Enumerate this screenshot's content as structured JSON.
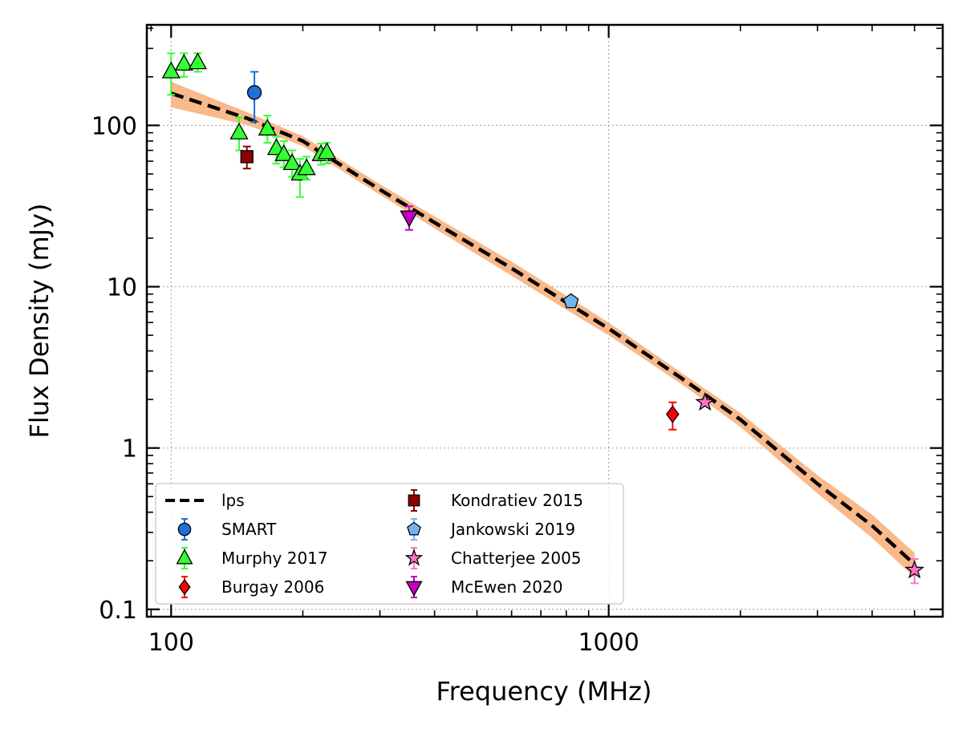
{
  "chart_data": {
    "type": "scatter",
    "title": "",
    "xlabel": "Frequency (MHz)",
    "ylabel": "Flux Density (mJy)",
    "xscale": "log",
    "yscale": "log",
    "xlim": [
      88,
      5800
    ],
    "ylim": [
      0.09,
      420
    ],
    "grid": true,
    "legend_position": "lower-left",
    "x_ticks": [
      {
        "value": 100,
        "label": "100"
      },
      {
        "value": 1000,
        "label": "1000"
      }
    ],
    "y_ticks": [
      {
        "value": 0.1,
        "label": "0.1"
      },
      {
        "value": 1,
        "label": "1"
      },
      {
        "value": 10,
        "label": "10"
      },
      {
        "value": 100,
        "label": "100"
      }
    ],
    "fit": {
      "name": "lps",
      "color": "#000000",
      "band_color": "#f9b98a",
      "points": [
        [
          100,
          158
        ],
        [
          150,
          110
        ],
        [
          200,
          80
        ],
        [
          300,
          40
        ],
        [
          400,
          25
        ],
        [
          600,
          13
        ],
        [
          800,
          8
        ],
        [
          1000,
          5.5
        ],
        [
          1500,
          2.6
        ],
        [
          2000,
          1.5
        ],
        [
          3000,
          0.6
        ],
        [
          4000,
          0.33
        ],
        [
          5000,
          0.19
        ]
      ],
      "band_rel_low": [
        0.82,
        0.91,
        0.93,
        0.93,
        0.92,
        0.9,
        0.9,
        0.91,
        0.92,
        0.9,
        0.87,
        0.84,
        0.83
      ],
      "band_rel_high": [
        1.18,
        1.09,
        1.07,
        1.08,
        1.09,
        1.1,
        1.1,
        1.09,
        1.08,
        1.1,
        1.13,
        1.17,
        1.18
      ]
    },
    "series": [
      {
        "name": "SMART",
        "marker": "circle",
        "color": "#1f6fd6",
        "ecolor": "#1f6fd6",
        "points": [
          {
            "x": 155,
            "y": 160,
            "ylo": 105,
            "yhi": 215
          }
        ]
      },
      {
        "name": "Murphy 2017",
        "marker": "triangle-up",
        "color": "#33ff33",
        "ecolor": "#33ff33",
        "points": [
          {
            "x": 100,
            "y": 215,
            "ylo": 155,
            "yhi": 280
          },
          {
            "x": 107,
            "y": 240,
            "ylo": 200,
            "yhi": 280
          },
          {
            "x": 115,
            "y": 245,
            "ylo": 215,
            "yhi": 280
          },
          {
            "x": 143,
            "y": 90,
            "ylo": 70,
            "yhi": 112
          },
          {
            "x": 166,
            "y": 95,
            "ylo": 78,
            "yhi": 115
          },
          {
            "x": 174,
            "y": 72,
            "ylo": 58,
            "yhi": 85
          },
          {
            "x": 181,
            "y": 66,
            "ylo": 55,
            "yhi": 80
          },
          {
            "x": 189,
            "y": 58,
            "ylo": 48,
            "yhi": 70
          },
          {
            "x": 197,
            "y": 50,
            "ylo": 36,
            "yhi": 62
          },
          {
            "x": 204,
            "y": 54,
            "ylo": 46,
            "yhi": 64
          },
          {
            "x": 220,
            "y": 66,
            "ylo": 57,
            "yhi": 77
          },
          {
            "x": 227,
            "y": 68,
            "ylo": 58,
            "yhi": 78
          }
        ]
      },
      {
        "name": "Burgay 2006",
        "marker": "diamond",
        "color": "#ff0000",
        "ecolor": "#ff0000",
        "points": [
          {
            "x": 1400,
            "y": 1.62,
            "ylo": 1.3,
            "yhi": 1.92
          }
        ]
      },
      {
        "name": "Kondratiev 2015",
        "marker": "square",
        "color": "#8b0000",
        "ecolor": "#8b0000",
        "points": [
          {
            "x": 149,
            "y": 64,
            "ylo": 54,
            "yhi": 74
          }
        ]
      },
      {
        "name": "Jankowski 2019",
        "marker": "pentagon",
        "color": "#74b4ee",
        "ecolor": "#74b4ee",
        "points": [
          {
            "x": 820,
            "y": 8.1,
            "ylo": 7.6,
            "yhi": 8.6
          }
        ]
      },
      {
        "name": "Chatterjee 2005",
        "marker": "star",
        "color": "#ff73c1",
        "ecolor": "#ff73c1",
        "points": [
          {
            "x": 1660,
            "y": 1.92,
            "ylo": 1.82,
            "yhi": 2.02
          },
          {
            "x": 5000,
            "y": 0.175,
            "ylo": 0.145,
            "yhi": 0.205
          }
        ]
      },
      {
        "name": "McEwen 2020",
        "marker": "triangle-down",
        "color": "#c000c0",
        "ecolor": "#c000c0",
        "points": [
          {
            "x": 350,
            "y": 27,
            "ylo": 22.5,
            "yhi": 31.5
          }
        ]
      }
    ]
  }
}
